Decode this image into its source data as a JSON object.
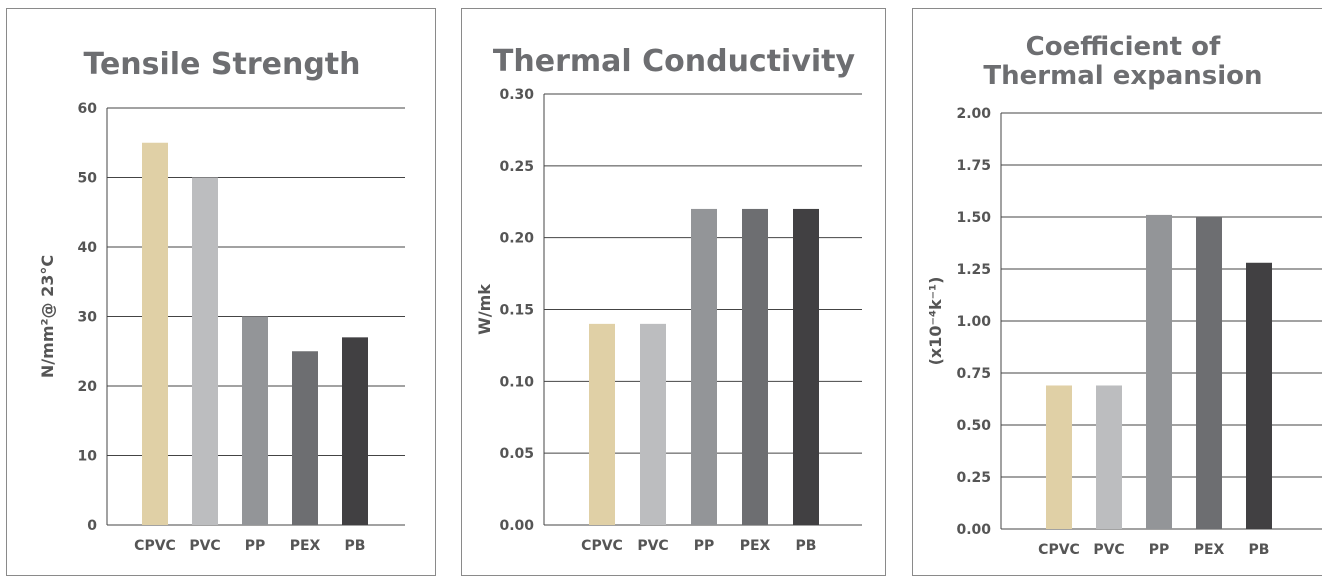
{
  "palette": [
    "#e0d0a6",
    "#bcbdbf",
    "#939598",
    "#6d6e71",
    "#414042"
  ],
  "chart_data": [
    {
      "type": "bar",
      "title": [
        "Tensile Strength"
      ],
      "ylabel": "N/mm²@ 23°C",
      "categories": [
        "CPVC",
        "PVC",
        "PP",
        "PEX",
        "PB"
      ],
      "values": [
        55,
        50,
        30,
        25,
        27
      ],
      "ylim": [
        0,
        60
      ],
      "yticks": [
        "0",
        "10",
        "20",
        "30",
        "40",
        "50",
        "60"
      ],
      "grid": true,
      "legend": "none"
    },
    {
      "type": "bar",
      "title": [
        "Thermal Conductivity"
      ],
      "ylabel": "W/mk",
      "categories": [
        "CPVC",
        "PVC",
        "PP",
        "PEX",
        "PB"
      ],
      "values": [
        0.14,
        0.14,
        0.22,
        0.22,
        0.22
      ],
      "ylim": [
        0,
        0.3
      ],
      "yticks": [
        "0.00",
        "0.05",
        "0.10",
        "0.15",
        "0.20",
        "0.25",
        "0.30"
      ],
      "grid": true,
      "legend": "none"
    },
    {
      "type": "bar",
      "title": [
        "Coefficient of",
        "Thermal expansion"
      ],
      "ylabel": "(x10⁻⁴k⁻¹)",
      "categories": [
        "CPVC",
        "PVC",
        "PP",
        "PEX",
        "PB"
      ],
      "values": [
        0.69,
        0.69,
        1.51,
        1.5,
        1.28
      ],
      "ylim": [
        0,
        2.0
      ],
      "yticks": [
        "0.00",
        "0.25",
        "0.50",
        "0.75",
        "1.00",
        "1.25",
        "1.50",
        "1.75",
        "2.00"
      ],
      "grid": true,
      "legend": "none"
    }
  ]
}
